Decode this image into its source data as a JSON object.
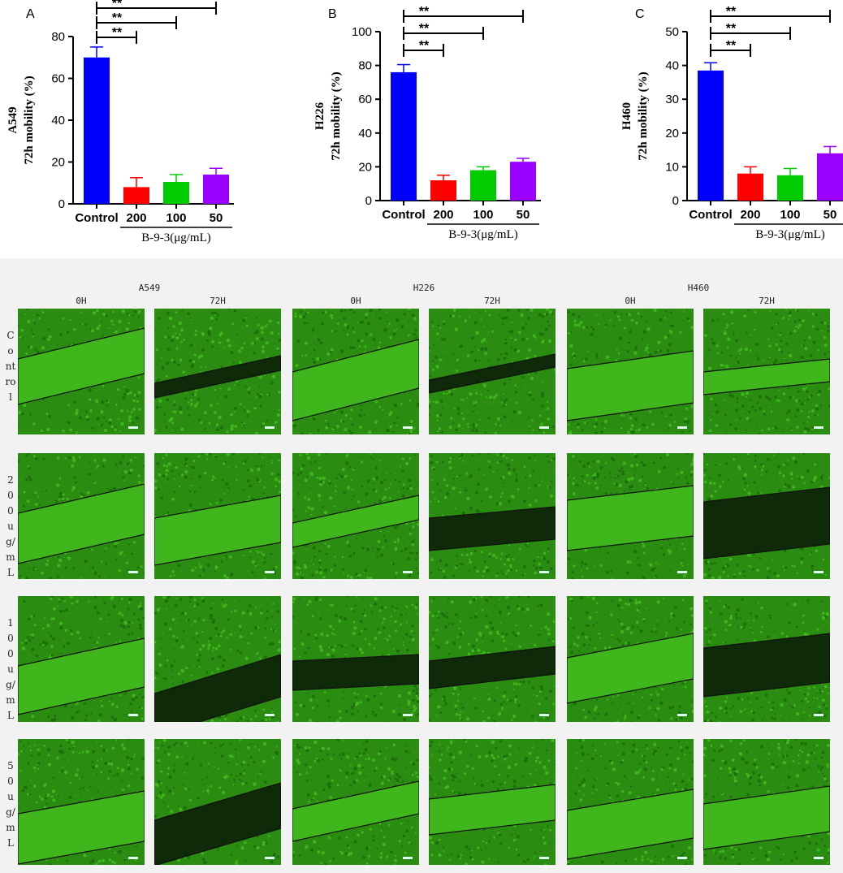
{
  "chart_data": [
    {
      "type": "bar",
      "panel_label": "A",
      "ylabel_line1": "A549",
      "ylabel_line2": "72h mobility (%)",
      "categories": [
        "Control",
        "200",
        "100",
        "50"
      ],
      "values": [
        70,
        8,
        10.5,
        14
      ],
      "errors": [
        5,
        4.5,
        3.5,
        3
      ],
      "colors": [
        "#0000ff",
        "#ff0000",
        "#00cc00",
        "#9900ff"
      ],
      "ylim": [
        0,
        80
      ],
      "yticks": [
        0,
        20,
        40,
        60,
        80
      ],
      "group_label": "B-9-3(μg/mL)",
      "significance": [
        {
          "from": 0,
          "to": 1,
          "label": "**"
        },
        {
          "from": 0,
          "to": 2,
          "label": "**"
        },
        {
          "from": 0,
          "to": 3,
          "label": "**"
        }
      ],
      "grid": false
    },
    {
      "type": "bar",
      "panel_label": "B",
      "ylabel_line1": "H226",
      "ylabel_line2": "72h mobility (%)",
      "categories": [
        "Control",
        "200",
        "100",
        "50"
      ],
      "values": [
        76,
        12,
        18,
        23
      ],
      "errors": [
        4.5,
        3,
        2,
        2
      ],
      "colors": [
        "#0000ff",
        "#ff0000",
        "#00cc00",
        "#9900ff"
      ],
      "ylim": [
        0,
        100
      ],
      "yticks": [
        0,
        20,
        40,
        60,
        80,
        100
      ],
      "group_label": "B-9-3(μg/mL)",
      "significance": [
        {
          "from": 0,
          "to": 1,
          "label": "**"
        },
        {
          "from": 0,
          "to": 2,
          "label": "**"
        },
        {
          "from": 0,
          "to": 3,
          "label": "**"
        }
      ],
      "grid": false
    },
    {
      "type": "bar",
      "panel_label": "C",
      "ylabel_line1": "H460",
      "ylabel_line2": "72h mobility (%)",
      "categories": [
        "Control",
        "200",
        "100",
        "50"
      ],
      "values": [
        38.5,
        8,
        7.5,
        14
      ],
      "errors": [
        2.3,
        2,
        2,
        2
      ],
      "colors": [
        "#0000ff",
        "#ff0000",
        "#00cc00",
        "#9900ff"
      ],
      "ylim": [
        0,
        50
      ],
      "yticks": [
        0,
        10,
        20,
        30,
        40,
        50
      ],
      "group_label": "B-9-3(μg/mL)",
      "significance": [
        {
          "from": 0,
          "to": 1,
          "label": "**"
        },
        {
          "from": 0,
          "to": 2,
          "label": "**"
        },
        {
          "from": 0,
          "to": 3,
          "label": "**"
        }
      ],
      "grid": false
    }
  ],
  "micrographs": {
    "cell_lines": [
      "A549",
      "H226",
      "H460"
    ],
    "time_points": [
      "0H",
      "72H"
    ],
    "rows": [
      "Control",
      "200ug/mL",
      "100ug/mL",
      "50ug/mL"
    ],
    "colors": {
      "cells": "#3fb71c",
      "background": "#2a8d12",
      "dark_gap": "#0f2a08"
    }
  }
}
